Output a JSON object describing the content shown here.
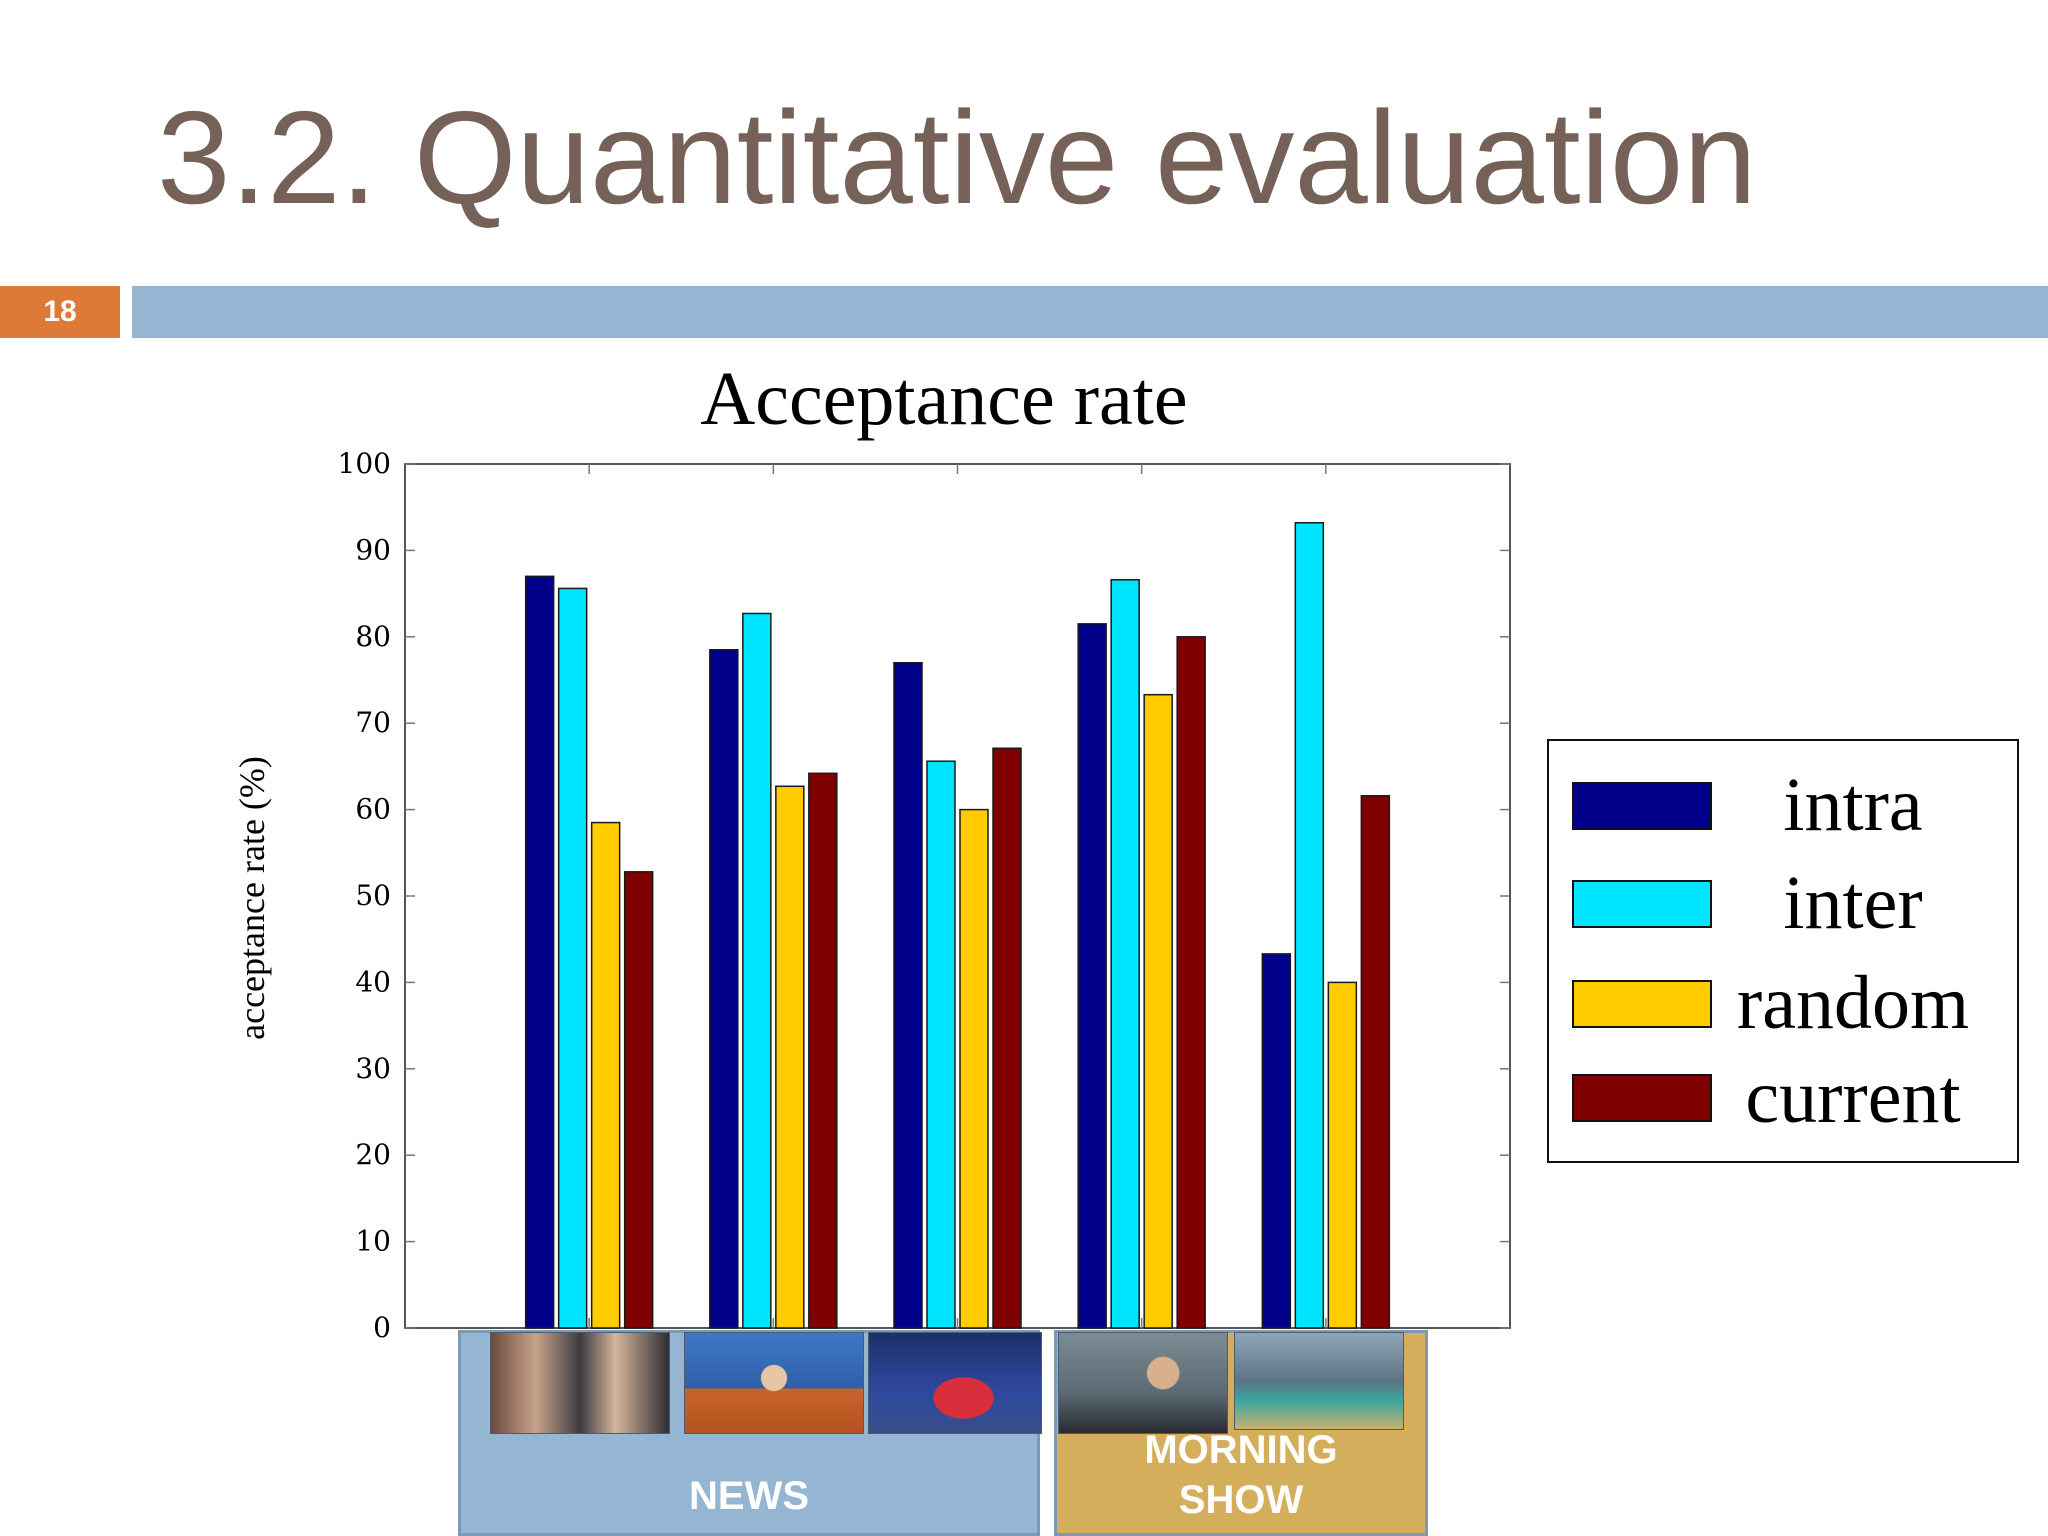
{
  "slide": {
    "title": "3.2. Quantitative evaluation",
    "page_number": "18"
  },
  "colors": {
    "title": "#766158",
    "page_badge": "#dd7a38",
    "title_bar": "#94b6d2",
    "news_panel": "#94b6d2",
    "morning_panel": "#d4ae5a"
  },
  "chart_data": {
    "type": "bar",
    "title": "Acceptance rate",
    "ylabel": "acceptance rate (%)",
    "xlabel": "",
    "ylim": [
      0,
      100
    ],
    "yticks": [
      0,
      10,
      20,
      30,
      40,
      50,
      60,
      70,
      80,
      90,
      100
    ],
    "grid": false,
    "legend_position": "right",
    "groups": 5,
    "series": [
      {
        "name": "intra",
        "color": "#00008b",
        "values": [
          87,
          78.5,
          77,
          81.5,
          43.3
        ]
      },
      {
        "name": "inter",
        "color": "#00e5ff",
        "values": [
          85.6,
          82.7,
          65.6,
          86.6,
          93.2
        ]
      },
      {
        "name": "random",
        "color": "#ffcc00",
        "values": [
          58.5,
          62.7,
          60,
          73.3,
          40
        ]
      },
      {
        "name": "current",
        "color": "#800000",
        "values": [
          52.8,
          64.2,
          67.1,
          80,
          61.6
        ]
      }
    ]
  },
  "groups": {
    "news_label": "NEWS",
    "morning_label_line1": "MORNING",
    "morning_label_line2": "SHOW"
  }
}
